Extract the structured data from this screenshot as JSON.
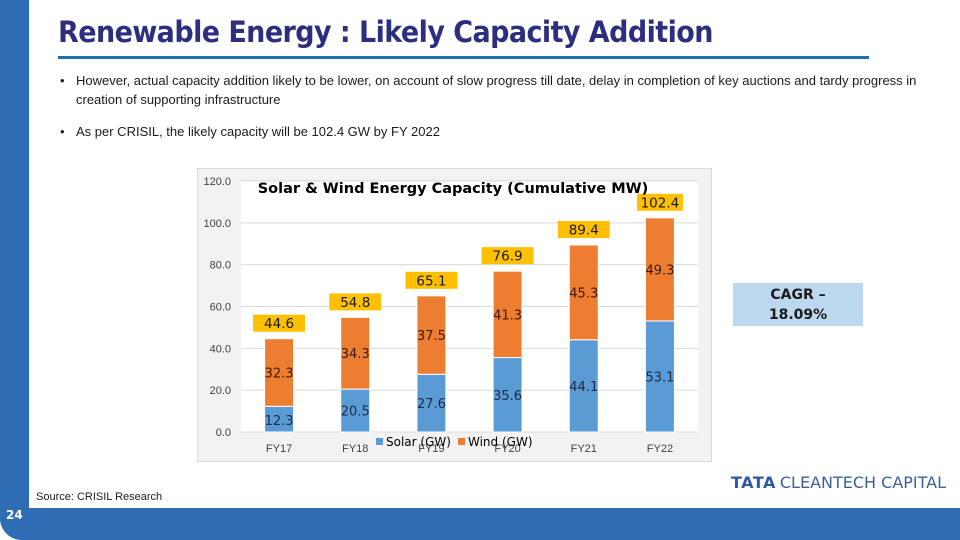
{
  "slide": {
    "title": "Renewable Energy : Likely Capacity Addition",
    "page_number": "24",
    "source": "Source: CRISIL Research",
    "logo": {
      "brand": "TATA",
      "name": "CLEANTECH CAPITAL"
    },
    "bullets": [
      {
        "marker": "•",
        "text": "However, actual capacity addition likely to be lower, on account of slow progress till date, delay in completion of key auctions and tardy progress in creation of supporting infrastructure"
      },
      {
        "marker": "•",
        "text": "As per CRISIL, the likely capacity will be 102.4 GW by FY 2022"
      }
    ],
    "callout": {
      "line1": "CAGR –",
      "line2": "18.09%"
    },
    "colors": {
      "primary_blue": "#2e6db4",
      "title_navy": "#2b2f7d",
      "solar": "#5b9bd5",
      "wind": "#ed7d31",
      "total_label": "#ffc000",
      "callout_bg": "#bdd7ee"
    }
  },
  "chart_data": {
    "type": "bar",
    "stacked": true,
    "title": "Solar & Wind Energy Capacity (Cumulative MW)",
    "xlabel": "",
    "ylabel": "",
    "categories": [
      "FY17",
      "FY18",
      "FY19",
      "FY20",
      "FY21",
      "FY22"
    ],
    "series": [
      {
        "name": "Solar (GW)",
        "color": "#5b9bd5",
        "values": [
          12.3,
          20.5,
          27.6,
          35.6,
          44.1,
          53.1
        ],
        "labels": [
          "12.3",
          "20.5",
          "27.6",
          "35.6",
          "44.1",
          "53.1"
        ]
      },
      {
        "name": "Wind (GW)",
        "color": "#ed7d31",
        "values": [
          32.3,
          34.3,
          37.5,
          41.3,
          45.3,
          49.3
        ],
        "labels": [
          "32.3",
          "34.3",
          "37.5",
          "41.3",
          "45.3",
          "49.3"
        ]
      }
    ],
    "totals": [
      44.6,
      54.8,
      65.1,
      76.9,
      89.4,
      102.4
    ],
    "total_labels": [
      "44.6",
      "54.8",
      "65.1",
      "76.9",
      "89.4",
      "102.4"
    ],
    "ylim": [
      0,
      120
    ],
    "yticks": [
      0,
      20,
      40,
      60,
      80,
      100,
      120
    ],
    "ytick_labels": [
      "0.0",
      "20.0",
      "40.0",
      "60.0",
      "80.0",
      "100.0",
      "120.0"
    ],
    "grid": true,
    "legend": "bottom-center"
  }
}
